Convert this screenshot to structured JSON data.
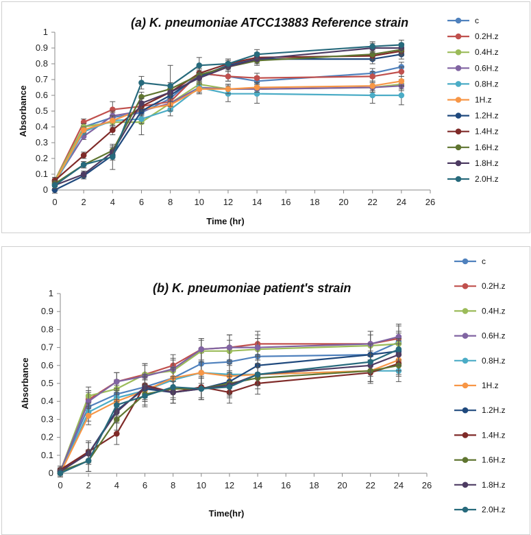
{
  "chart_data": [
    {
      "type": "line",
      "title": "(a) K. pneumoniae ATCC13883 Reference strain",
      "xlabel": "Time (hr)",
      "ylabel": "Absorbance",
      "xlim": [
        0,
        26
      ],
      "ylim": [
        0,
        1
      ],
      "xticks": [
        0,
        2,
        4,
        6,
        8,
        10,
        12,
        14,
        16,
        18,
        20,
        22,
        24,
        26
      ],
      "yticks": [
        0,
        0.1,
        0.2,
        0.3,
        0.4,
        0.5,
        0.6,
        0.7,
        0.8,
        0.9,
        1
      ],
      "x": [
        0,
        2,
        4,
        6,
        8,
        10,
        12,
        14,
        22,
        24
      ],
      "legend_position": "right",
      "grid": false,
      "series": [
        {
          "name": "c",
          "color": "#4f81bd",
          "values": [
            0.05,
            0.4,
            0.46,
            0.49,
            0.58,
            0.74,
            0.72,
            0.69,
            0.74,
            0.78
          ],
          "errors": [
            0.02,
            0.02,
            0.03,
            0.03,
            0.04,
            0.05,
            0.03,
            0.03,
            0.03,
            0.03
          ]
        },
        {
          "name": "0.2H.z",
          "color": "#c0504d",
          "values": [
            0.06,
            0.43,
            0.51,
            0.53,
            0.56,
            0.74,
            0.72,
            0.71,
            0.72,
            0.75
          ],
          "errors": [
            0.02,
            0.02,
            0.05,
            0.03,
            0.03,
            0.05,
            0.03,
            0.03,
            0.03,
            0.03
          ]
        },
        {
          "name": "0.4H.z",
          "color": "#9bbb59",
          "values": [
            0.06,
            0.4,
            0.43,
            0.43,
            0.55,
            0.67,
            0.64,
            0.64,
            0.65,
            0.67
          ],
          "errors": [
            0.02,
            0.02,
            0.03,
            0.08,
            0.04,
            0.04,
            0.03,
            0.03,
            0.03,
            0.03
          ]
        },
        {
          "name": "0.6H.z",
          "color": "#8064a2",
          "values": [
            0.05,
            0.34,
            0.47,
            0.5,
            0.55,
            0.65,
            0.64,
            0.64,
            0.65,
            0.66
          ],
          "errors": [
            0.02,
            0.02,
            0.03,
            0.03,
            0.04,
            0.04,
            0.03,
            0.03,
            0.03,
            0.03
          ]
        },
        {
          "name": "0.8H.z",
          "color": "#4bacc6",
          "values": [
            0.04,
            0.37,
            0.44,
            0.45,
            0.51,
            0.65,
            0.61,
            0.61,
            0.6,
            0.6
          ],
          "errors": [
            0.02,
            0.02,
            0.03,
            0.03,
            0.04,
            0.03,
            0.05,
            0.06,
            0.05,
            0.06
          ]
        },
        {
          "name": "1H.z",
          "color": "#f79646",
          "values": [
            0.05,
            0.38,
            0.44,
            0.51,
            0.54,
            0.64,
            0.64,
            0.65,
            0.66,
            0.69
          ],
          "errors": [
            0.02,
            0.02,
            0.03,
            0.03,
            0.04,
            0.03,
            0.03,
            0.03,
            0.03,
            0.03
          ]
        },
        {
          "name": "1.2H.z",
          "color": "#1f497d",
          "values": [
            0.0,
            0.09,
            0.22,
            0.5,
            0.6,
            0.72,
            0.79,
            0.83,
            0.83,
            0.86
          ],
          "errors": [
            0.02,
            0.02,
            0.03,
            0.03,
            0.04,
            0.03,
            0.03,
            0.03,
            0.03,
            0.03
          ]
        },
        {
          "name": "1.4H.z",
          "color": "#7f2a28",
          "values": [
            0.06,
            0.22,
            0.38,
            0.53,
            0.62,
            0.74,
            0.8,
            0.84,
            0.85,
            0.88
          ],
          "errors": [
            0.02,
            0.02,
            0.03,
            0.03,
            0.04,
            0.03,
            0.03,
            0.03,
            0.03,
            0.03
          ]
        },
        {
          "name": "1.6H.z",
          "color": "#5f7530",
          "values": [
            0.04,
            0.16,
            0.25,
            0.59,
            0.64,
            0.73,
            0.78,
            0.82,
            0.86,
            0.89
          ],
          "errors": [
            0.02,
            0.02,
            0.03,
            0.03,
            0.04,
            0.03,
            0.03,
            0.03,
            0.03,
            0.03
          ]
        },
        {
          "name": "1.8H.z",
          "color": "#4d3b62",
          "values": [
            0.03,
            0.1,
            0.24,
            0.55,
            0.62,
            0.71,
            0.78,
            0.83,
            0.9,
            0.9
          ],
          "errors": [
            0.02,
            0.02,
            0.03,
            0.03,
            0.04,
            0.03,
            0.03,
            0.03,
            0.03,
            0.03
          ]
        },
        {
          "name": "2.0H.z",
          "color": "#276a7c",
          "values": [
            0.03,
            0.16,
            0.21,
            0.68,
            0.66,
            0.79,
            0.8,
            0.86,
            0.91,
            0.92
          ],
          "errors": [
            0.02,
            0.02,
            0.08,
            0.04,
            0.13,
            0.05,
            0.03,
            0.03,
            0.03,
            0.03
          ]
        }
      ]
    },
    {
      "type": "line",
      "title": "(b)  K. pneumoniae patient's strain",
      "xlabel": "Time(hr)",
      "ylabel": "Absorbance",
      "xlim": [
        0,
        26
      ],
      "ylim": [
        0,
        1
      ],
      "xticks": [
        0,
        2,
        4,
        6,
        8,
        10,
        12,
        14,
        16,
        18,
        20,
        22,
        24,
        26
      ],
      "yticks": [
        0,
        0.1,
        0.2,
        0.3,
        0.4,
        0.5,
        0.6,
        0.7,
        0.8,
        0.9,
        1
      ],
      "x": [
        0,
        2,
        4,
        6,
        8,
        10,
        12,
        14,
        22,
        24
      ],
      "legend_position": "right",
      "grid": false,
      "series": [
        {
          "name": "c",
          "color": "#4f81bd",
          "values": [
            0.01,
            0.37,
            0.44,
            0.48,
            0.53,
            0.61,
            0.62,
            0.65,
            0.66,
            0.73
          ],
          "errors": [
            0.02,
            0.05,
            0.05,
            0.06,
            0.06,
            0.06,
            0.06,
            0.06,
            0.06,
            0.06
          ]
        },
        {
          "name": "0.2H.z",
          "color": "#c0504d",
          "values": [
            0.01,
            0.41,
            0.51,
            0.55,
            0.6,
            0.69,
            0.7,
            0.72,
            0.72,
            0.75
          ],
          "errors": [
            0.02,
            0.05,
            0.05,
            0.06,
            0.06,
            0.06,
            0.07,
            0.07,
            0.07,
            0.07
          ]
        },
        {
          "name": "0.4H.z",
          "color": "#9bbb59",
          "values": [
            0.01,
            0.43,
            0.47,
            0.55,
            0.57,
            0.68,
            0.68,
            0.69,
            0.71,
            0.72
          ],
          "errors": [
            0.02,
            0.05,
            0.05,
            0.06,
            0.06,
            0.06,
            0.06,
            0.06,
            0.06,
            0.06
          ]
        },
        {
          "name": "0.6H.z",
          "color": "#8064a2",
          "values": [
            0.01,
            0.4,
            0.51,
            0.54,
            0.58,
            0.69,
            0.7,
            0.7,
            0.72,
            0.76
          ],
          "errors": [
            0.02,
            0.05,
            0.05,
            0.06,
            0.06,
            0.06,
            0.07,
            0.07,
            0.07,
            0.07
          ]
        },
        {
          "name": "0.8H.z",
          "color": "#4bacc6",
          "values": [
            0.0,
            0.34,
            0.42,
            0.46,
            0.52,
            0.56,
            0.55,
            0.55,
            0.57,
            0.57
          ],
          "errors": [
            0.02,
            0.05,
            0.05,
            0.06,
            0.06,
            0.06,
            0.06,
            0.06,
            0.06,
            0.06
          ]
        },
        {
          "name": "1H.z",
          "color": "#f79646",
          "values": [
            0.0,
            0.32,
            0.4,
            0.46,
            0.53,
            0.56,
            0.54,
            0.55,
            0.57,
            0.63
          ],
          "errors": [
            0.02,
            0.05,
            0.05,
            0.06,
            0.06,
            0.06,
            0.06,
            0.06,
            0.06,
            0.06
          ]
        },
        {
          "name": "1.2H.z",
          "color": "#1f497d",
          "values": [
            0.02,
            0.11,
            0.35,
            0.47,
            0.45,
            0.47,
            0.51,
            0.6,
            0.66,
            0.68
          ],
          "errors": [
            0.02,
            0.06,
            0.06,
            0.06,
            0.06,
            0.06,
            0.06,
            0.06,
            0.06,
            0.06
          ]
        },
        {
          "name": "1.4H.z",
          "color": "#7f2a28",
          "values": [
            0.02,
            0.12,
            0.22,
            0.49,
            0.45,
            0.48,
            0.45,
            0.5,
            0.56,
            0.61
          ],
          "errors": [
            0.02,
            0.06,
            0.06,
            0.06,
            0.06,
            0.06,
            0.06,
            0.06,
            0.06,
            0.06
          ]
        },
        {
          "name": "1.6H.z",
          "color": "#5f7530",
          "values": [
            0.01,
            0.07,
            0.3,
            0.44,
            0.47,
            0.47,
            0.5,
            0.53,
            0.57,
            0.6
          ],
          "errors": [
            0.02,
            0.06,
            0.06,
            0.06,
            0.06,
            0.06,
            0.06,
            0.06,
            0.06,
            0.06
          ]
        },
        {
          "name": "1.8H.z",
          "color": "#4d3b62",
          "values": [
            0.01,
            0.11,
            0.34,
            0.48,
            0.45,
            0.47,
            0.49,
            0.55,
            0.6,
            0.66
          ],
          "errors": [
            0.02,
            0.06,
            0.06,
            0.06,
            0.06,
            0.06,
            0.06,
            0.06,
            0.06,
            0.06
          ]
        },
        {
          "name": "2.0H.z",
          "color": "#276a7c",
          "values": [
            0.0,
            0.07,
            0.38,
            0.43,
            0.48,
            0.47,
            0.48,
            0.55,
            0.62,
            0.69
          ],
          "errors": [
            0.02,
            0.06,
            0.06,
            0.06,
            0.06,
            0.06,
            0.06,
            0.06,
            0.06,
            0.06
          ]
        }
      ]
    }
  ]
}
